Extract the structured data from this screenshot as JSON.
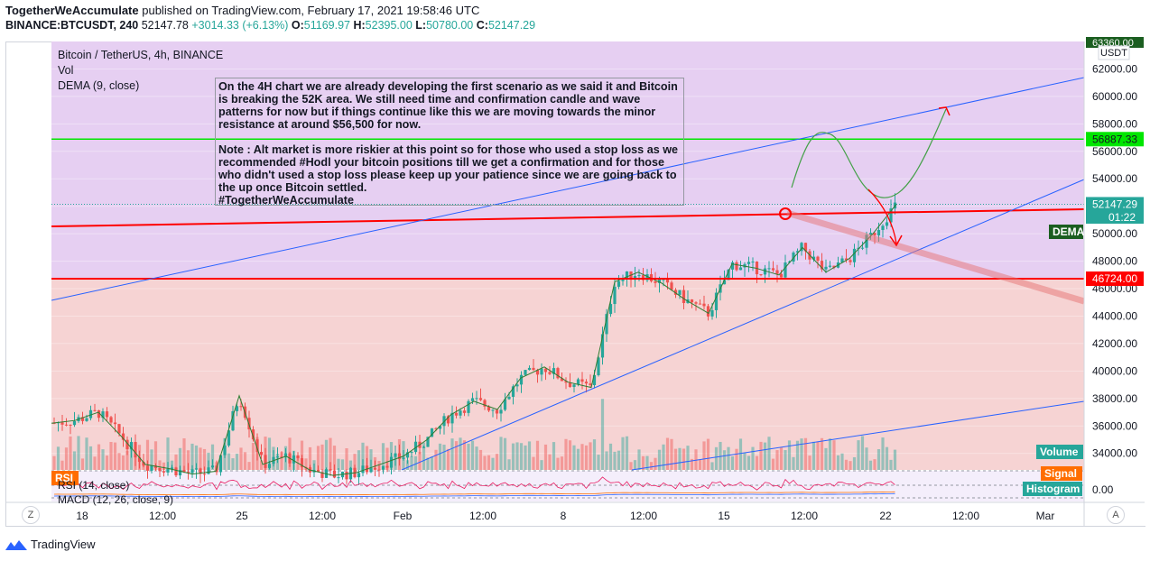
{
  "header": {
    "publisher": "TogetherWeAccumulate",
    "published_text": "published on TradingView.com, February 17, 2021 19:58:46 UTC",
    "symbol": "BINANCE:BTCUSDT, 240",
    "last": "52147.78",
    "change": "+3014.33 (+6.13%)",
    "open_label": "O:",
    "open": "51169.97",
    "high_label": "H:",
    "high": "52395.00",
    "low_label": "L:",
    "low": "50780.00",
    "close_label": "C:",
    "close": "52147.29"
  },
  "indicators": {
    "title": "Bitcoin / TetherUS, 4h, BINANCE",
    "vol": "Vol",
    "dema": "DEMA (9, close)",
    "rsi": "RSI (14, close)",
    "macd": "MACD (12, 26, close, 9)"
  },
  "note": "On the 4H chart we are already developing the first scenario as we said it and Bitcoin is breaking the 52K area. We still need time and confirmation candle and wave patterns for now but if things continue like this we are moving towards the minor resistance at around $56,500 for now.\n\nNote : Alt market is more riskier at this point so for those who used a stop loss as we recommended #Hodl your bitcoin positions till we get a confirmation and for those who didn't used a stop loss please keep up your patience since we are going back to the up once Bitcoin settled.\n#TogetherWeAccumulate",
  "footer": {
    "brand": "TradingView"
  },
  "scale_buttons": {
    "left": "Z",
    "right": "A"
  },
  "colors": {
    "up": "#26a69a",
    "down": "#ef5350",
    "zone_purple": "#e6cff2",
    "zone_red": "#f6d3d3",
    "green_line": "#00e600",
    "red_line": "#ff0000",
    "trend_blue": "#2962ff"
  },
  "chart_data": {
    "type": "candlestick",
    "title": "Bitcoin / TetherUS, 4h, BINANCE",
    "currency": "USDT",
    "y_range": [
      32800,
      64000
    ],
    "y_ticks": [
      34000,
      36000,
      38000,
      40000,
      42000,
      44000,
      46000,
      48000,
      50000,
      52000,
      54000,
      56000,
      58000,
      60000,
      62000
    ],
    "x_labels": [
      "18",
      "12:00",
      "25",
      "12:00",
      "Feb",
      "12:00",
      "8",
      "12:00",
      "15",
      "12:00",
      "22",
      "12:00",
      "Mar"
    ],
    "x_range_days": [
      "2021-01-17",
      "2021-03-02"
    ],
    "price_labels": [
      {
        "value": 56887.33,
        "text": "56887.33",
        "color": "#00e600"
      },
      {
        "value": 52147.29,
        "text": "52147.29",
        "color": "#26a69a"
      },
      {
        "value": 46724.0,
        "text": "46724.00",
        "color": "#ff0000"
      }
    ],
    "countdown": "01:22",
    "top_label": "63360.00",
    "pane_labels": [
      "DEMA",
      "Volume",
      "RSI",
      "Signal",
      "Histogram"
    ],
    "macd_axis_label": "0.00",
    "levels": {
      "resistance": 56887.33,
      "support": 46724
    },
    "close_path": [
      [
        "2021-01-17",
        36200
      ],
      [
        "2021-01-18",
        36400
      ],
      [
        "2021-01-19",
        37000
      ],
      [
        "2021-01-20",
        35200
      ],
      [
        "2021-01-21",
        33200
      ],
      [
        "2021-01-22",
        32900
      ],
      [
        "2021-01-23",
        32500
      ],
      [
        "2021-01-24",
        32700
      ],
      [
        "2021-01-25",
        38200
      ],
      [
        "2021-01-26",
        33200
      ],
      [
        "2021-01-27",
        33800
      ],
      [
        "2021-01-28",
        32800
      ],
      [
        "2021-01-29",
        32400
      ],
      [
        "2021-01-30",
        32600
      ],
      [
        "2021-01-31",
        33200
      ],
      [
        "2021-02-01",
        33800
      ],
      [
        "2021-02-02",
        35000
      ],
      [
        "2021-02-03",
        36800
      ],
      [
        "2021-02-04",
        37800
      ],
      [
        "2021-02-05",
        37200
      ],
      [
        "2021-02-06",
        39500
      ],
      [
        "2021-02-07",
        40300
      ],
      [
        "2021-02-08",
        39200
      ],
      [
        "2021-02-09",
        38800
      ],
      [
        "2021-02-10",
        46500
      ],
      [
        "2021-02-11",
        47200
      ],
      [
        "2021-02-12",
        46400
      ],
      [
        "2021-02-13",
        45200
      ],
      [
        "2021-02-14",
        44200
      ],
      [
        "2021-02-15",
        47800
      ],
      [
        "2021-02-16",
        47500
      ],
      [
        "2021-02-17",
        47000
      ],
      [
        "2021-02-18",
        49000
      ],
      [
        "2021-02-19",
        47200
      ],
      [
        "2021-02-20",
        48200
      ],
      [
        "2021-02-21",
        50000
      ],
      [
        "2021-02-22",
        52147
      ]
    ]
  }
}
